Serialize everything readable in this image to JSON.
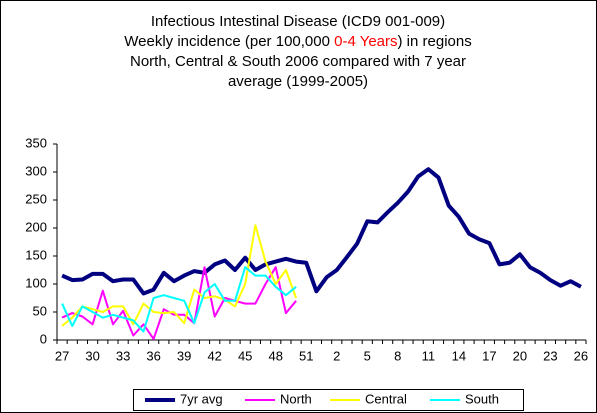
{
  "chart_data": {
    "type": "line",
    "title": [
      [
        {
          "text": "Infectious Intestinal Disease (ICD9 001-009)",
          "color": "#000000"
        }
      ],
      [
        {
          "text": "Weekly incidence (per 100,000 ",
          "color": "#000000"
        },
        {
          "text": "0-4 Years",
          "color": "#ff0000"
        },
        {
          "text": ") in regions",
          "color": "#000000"
        }
      ],
      [
        {
          "text": "North, Central & South 2006 compared with 7 year",
          "color": "#000000"
        }
      ],
      [
        {
          "text": "average (1999-2005)",
          "color": "#000000"
        }
      ]
    ],
    "categories": [
      "27",
      null,
      null,
      "30",
      null,
      null,
      "33",
      null,
      null,
      "36",
      null,
      null,
      "39",
      null,
      null,
      "42",
      null,
      null,
      "45",
      null,
      null,
      "48",
      null,
      null,
      "51",
      null,
      null,
      "2",
      null,
      null,
      "5",
      null,
      null,
      "8",
      null,
      null,
      "11",
      null,
      null,
      "14",
      null,
      null,
      "17",
      null,
      null,
      "20",
      null,
      null,
      "23",
      null,
      null,
      "26"
    ],
    "series": [
      {
        "name": "7yr avg",
        "color": "#000080",
        "width": 4,
        "values": [
          115,
          107,
          108,
          118,
          118,
          105,
          108,
          108,
          83,
          90,
          120,
          105,
          115,
          123,
          120,
          135,
          142,
          125,
          147,
          125,
          135,
          140,
          145,
          140,
          138,
          87,
          112,
          125,
          148,
          172,
          212,
          210,
          228,
          245,
          265,
          292,
          305,
          290,
          240,
          220,
          190,
          180,
          173,
          135,
          138,
          153,
          130,
          120,
          107,
          97,
          105,
          95
        ]
      },
      {
        "name": "North",
        "color": "#ff00ff",
        "width": 2,
        "values": [
          40,
          48,
          42,
          28,
          88,
          28,
          52,
          8,
          28,
          2,
          55,
          45,
          45,
          30,
          130,
          42,
          75,
          70,
          65,
          65,
          100,
          130,
          48,
          70,
          null,
          null,
          null,
          null,
          null,
          null,
          null,
          null,
          null,
          null,
          null,
          null,
          null,
          null,
          null,
          null,
          null,
          null,
          null,
          null,
          null,
          null,
          null,
          null,
          null,
          null,
          null,
          null
        ]
      },
      {
        "name": "Central",
        "color": "#ffff00",
        "width": 2,
        "values": [
          25,
          40,
          60,
          55,
          50,
          60,
          60,
          28,
          65,
          50,
          48,
          50,
          30,
          90,
          75,
          78,
          72,
          60,
          100,
          205,
          140,
          100,
          125,
          75,
          null,
          null,
          null,
          null,
          null,
          null,
          null,
          null,
          null,
          null,
          null,
          null,
          null,
          null,
          null,
          null,
          null,
          null,
          null,
          null,
          null,
          null,
          null,
          null,
          null,
          null,
          null,
          null
        ]
      },
      {
        "name": "South",
        "color": "#00ffff",
        "width": 2,
        "values": [
          65,
          25,
          60,
          50,
          40,
          45,
          40,
          35,
          15,
          75,
          80,
          75,
          70,
          30,
          85,
          100,
          70,
          70,
          130,
          115,
          115,
          95,
          80,
          95,
          null,
          null,
          null,
          null,
          null,
          null,
          null,
          null,
          null,
          null,
          null,
          null,
          null,
          null,
          null,
          null,
          null,
          null,
          null,
          null,
          null,
          null,
          null,
          null,
          null,
          null,
          null,
          null
        ]
      }
    ],
    "ylim": [
      0,
      350
    ],
    "yticks": [
      0,
      50,
      100,
      150,
      200,
      250,
      300,
      350
    ],
    "legend": "bottom"
  }
}
